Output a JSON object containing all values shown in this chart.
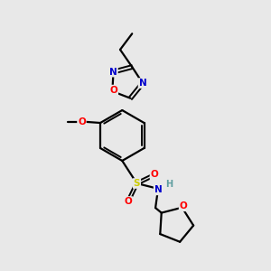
{
  "background_color": "#e8e8e8",
  "bond_color": "#000000",
  "atom_colors": {
    "N": "#0000cc",
    "O": "#ff0000",
    "S": "#cccc00",
    "H": "#5f9ea0",
    "C": "#000000"
  },
  "figsize": [
    3.0,
    3.0
  ],
  "dpi": 100
}
